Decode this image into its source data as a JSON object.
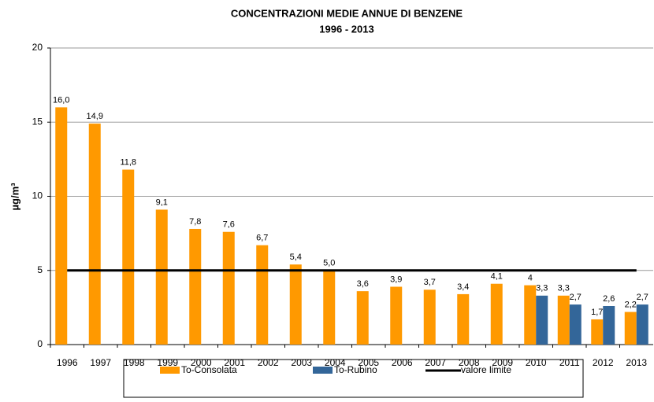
{
  "chart_data": {
    "type": "bar",
    "title": "CONCENTRAZIONI MEDIE ANNUE DI BENZENE",
    "subtitle": "1996 - 2013",
    "y_label": "µg/m³",
    "categories": [
      "1996",
      "1997",
      "1998",
      "1999",
      "2000",
      "2001",
      "2002",
      "2003",
      "2004",
      "2005",
      "2006",
      "2007",
      "2008",
      "2009",
      "2010",
      "2011",
      "2012",
      "2013"
    ],
    "series": [
      {
        "name": "To-Consolata",
        "color": "#ff9900",
        "values": [
          16.0,
          14.9,
          11.8,
          9.1,
          7.8,
          7.6,
          6.7,
          5.4,
          5.0,
          3.6,
          3.9,
          3.7,
          3.4,
          4.1,
          4,
          3.3,
          1.7,
          2.2
        ],
        "value_labels": [
          "16,0",
          "14,9",
          "11,8",
          "9,1",
          "7,8",
          "7,6",
          "6,7",
          "5,4",
          "5,0",
          "3,6",
          "3,9",
          "3,7",
          "3,4",
          "4,1",
          "4",
          "3,3",
          "1,7",
          "2,2"
        ]
      },
      {
        "name": "To-Rubino",
        "color": "#336699",
        "values": [
          null,
          null,
          null,
          null,
          null,
          null,
          null,
          null,
          null,
          null,
          null,
          null,
          null,
          null,
          3.3,
          2.7,
          2.6,
          2.7
        ],
        "value_labels": [
          null,
          null,
          null,
          null,
          null,
          null,
          null,
          null,
          null,
          null,
          null,
          null,
          null,
          null,
          "3,3",
          "2,7",
          "2,6",
          "2,7"
        ]
      },
      {
        "name": "valore limite",
        "color": "#000000",
        "type": "line",
        "values": [
          5,
          5,
          5,
          5,
          5,
          5,
          5,
          5,
          5,
          5,
          5,
          5,
          5,
          5,
          5,
          5,
          5,
          5
        ]
      }
    ],
    "ylim": [
      0,
      20
    ],
    "yticks": [
      0,
      5,
      10,
      15,
      20
    ],
    "grid": true
  }
}
